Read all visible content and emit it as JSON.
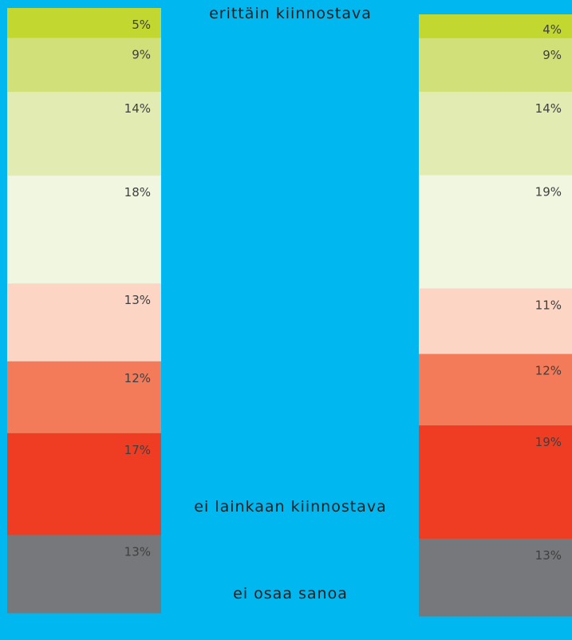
{
  "chart_data": {
    "type": "bar",
    "stacked": true,
    "orientation": "vertical",
    "categories": [
      "erittäin kiinnostava",
      "",
      "",
      "",
      "",
      "",
      "ei lainkaan kiinnostava",
      "ei osaa sanoa"
    ],
    "series": [
      {
        "values": [
          5,
          9,
          14,
          18,
          13,
          12,
          17,
          13
        ]
      },
      {
        "values": [
          4,
          9,
          14,
          19,
          11,
          12,
          19,
          13
        ]
      }
    ],
    "segment_colors": [
      "#c2d72f",
      "#d2e07a",
      "#e2ebb2",
      "#f1f6e1",
      "#fdd5c4",
      "#f47b59",
      "#ef3d23",
      "#77787b"
    ],
    "value_suffix": "%",
    "label_color": "#3f3f3f",
    "background": "#00b7ef",
    "grid": false,
    "legend": "none"
  },
  "scale_labels": {
    "top": "erittäin kiinnostava",
    "middle": "ei lainkaan kiinnostava",
    "bottom": "ei osaa sanoa"
  }
}
